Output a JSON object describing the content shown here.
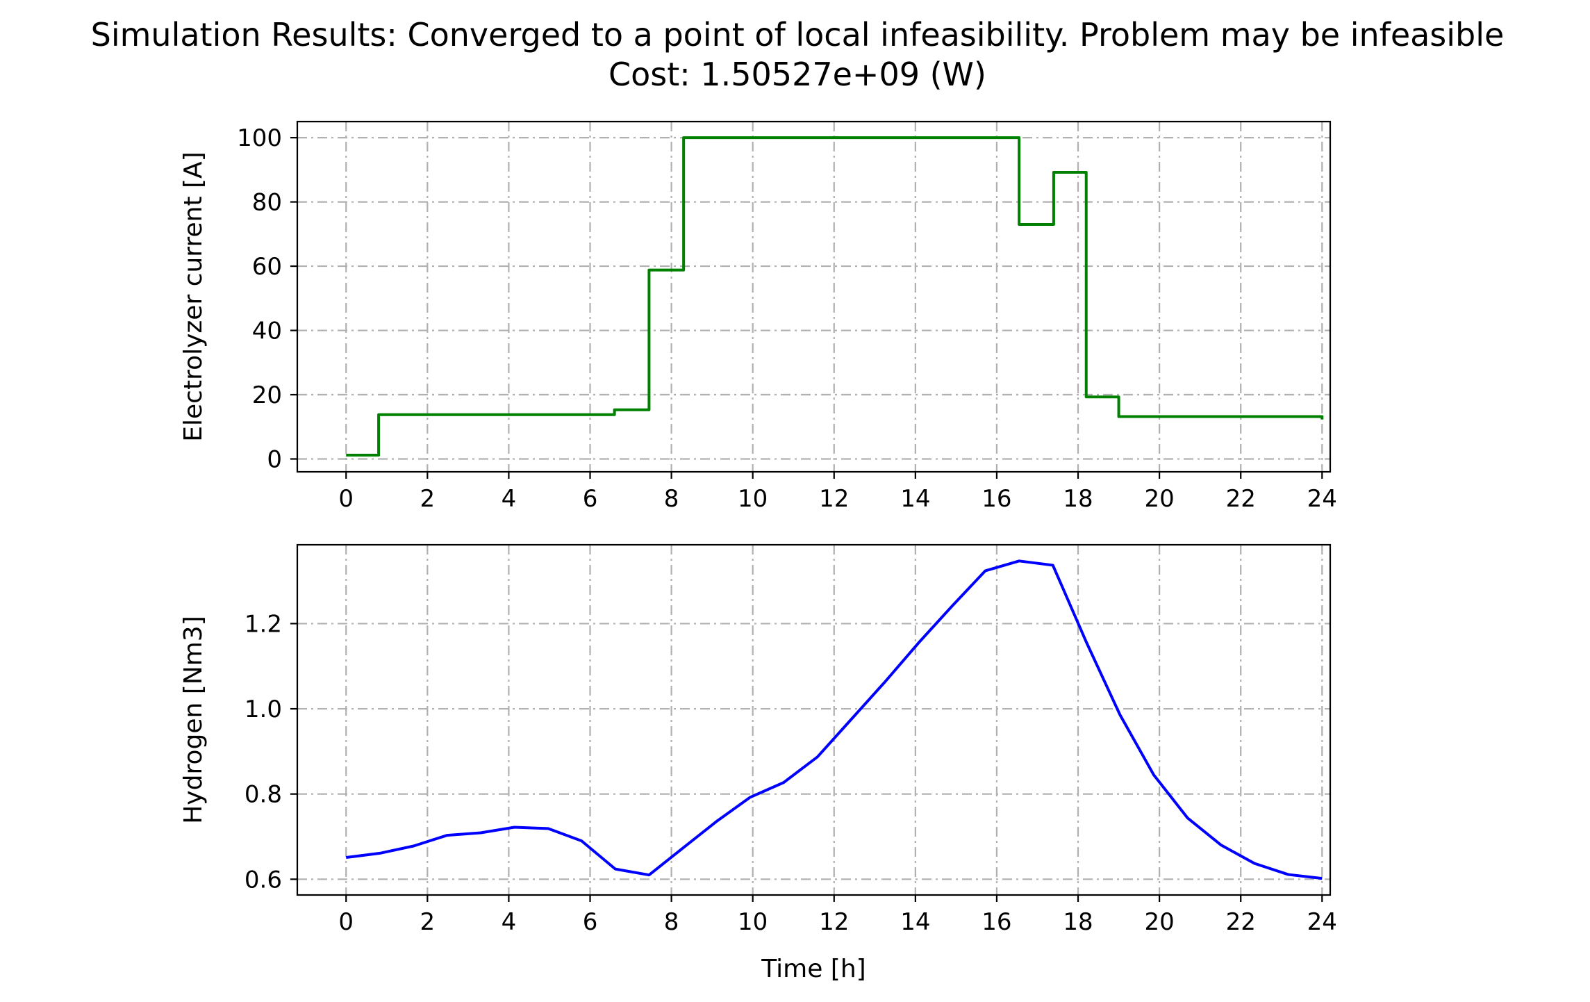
{
  "figure": {
    "title_line1": "Simulation Results:  Converged to a point of local infeasibility. Problem may be infeasible",
    "title_line2": "Cost: 1.50527e+09 (W)"
  },
  "chart_data": [
    {
      "type": "line",
      "step": true,
      "title": "",
      "xlabel": "",
      "ylabel": "Electrolyzer current [A]",
      "xlim": [
        -1.2,
        24.2
      ],
      "ylim": [
        -4,
        105
      ],
      "xticks": [
        0,
        2,
        4,
        6,
        8,
        10,
        12,
        14,
        16,
        18,
        20,
        22,
        24
      ],
      "yticks": [
        0,
        20,
        40,
        60,
        80,
        100
      ],
      "grid": true,
      "color": "#008000",
      "series": [
        {
          "x": [
            0,
            0.8,
            0.8,
            6.6,
            6.6,
            7.45,
            7.45,
            8.3,
            8.3,
            16.55,
            16.55,
            17.4,
            17.4,
            18.2,
            18.2,
            19.0,
            19.0,
            24.0,
            24.0
          ],
          "values": [
            1.2,
            1.2,
            13.8,
            13.8,
            15.3,
            15.3,
            58.8,
            58.8,
            100,
            100,
            73,
            73,
            89.2,
            89.2,
            19.3,
            19.3,
            13.2,
            13.2,
            12.3
          ]
        }
      ]
    },
    {
      "type": "line",
      "step": false,
      "title": "",
      "xlabel": "Time [h]",
      "ylabel": "Hydrogen [Nm3]",
      "xlim": [
        -1.2,
        24.2
      ],
      "ylim": [
        0.563,
        1.385
      ],
      "xticks": [
        0,
        2,
        4,
        6,
        8,
        10,
        12,
        14,
        16,
        18,
        20,
        22,
        24
      ],
      "yticks": [
        0.6,
        0.8,
        1.0,
        1.2
      ],
      "ytick_labels": [
        "0.6",
        "0.8",
        "1.0",
        "1.2"
      ],
      "grid": true,
      "color": "#0000ff",
      "series": [
        {
          "x": [
            0,
            0.83,
            1.66,
            2.48,
            3.31,
            4.14,
            4.97,
            5.79,
            6.62,
            7.45,
            8.28,
            9.1,
            9.93,
            10.76,
            11.59,
            12.41,
            13.24,
            14.07,
            14.9,
            15.72,
            16.55,
            17.38,
            18.21,
            19.03,
            19.86,
            20.69,
            21.52,
            22.34,
            23.17,
            24.0
          ],
          "values": [
            0.651,
            0.661,
            0.678,
            0.703,
            0.709,
            0.722,
            0.719,
            0.69,
            0.624,
            0.61,
            0.673,
            0.735,
            0.792,
            0.827,
            0.887,
            0.974,
            1.062,
            1.154,
            1.241,
            1.324,
            1.347,
            1.337,
            1.155,
            0.986,
            0.845,
            0.744,
            0.68,
            0.637,
            0.611,
            0.602
          ]
        }
      ]
    }
  ]
}
